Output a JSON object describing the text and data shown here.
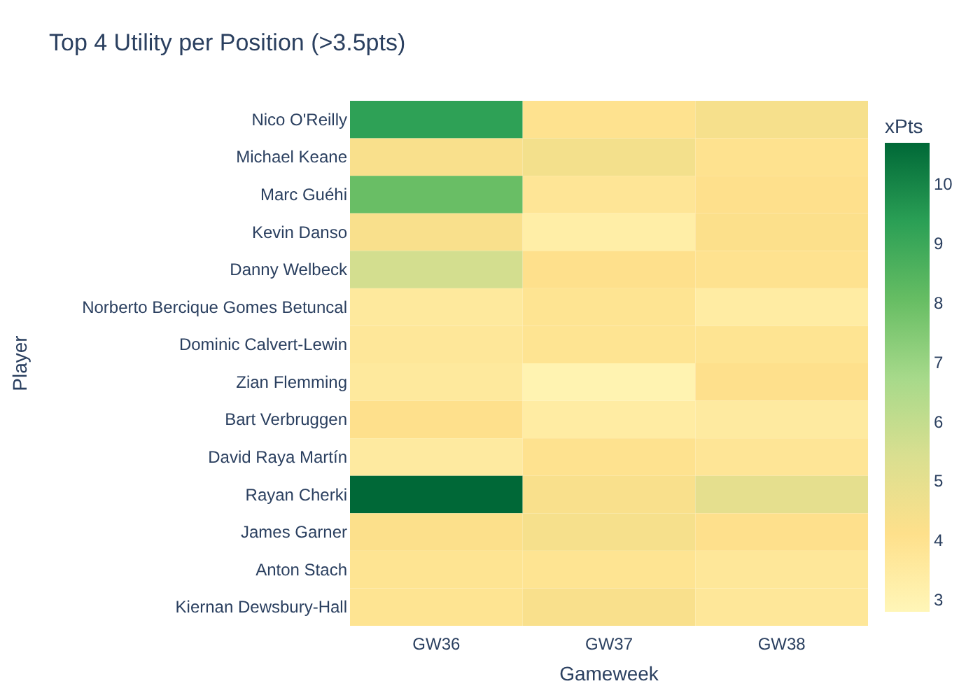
{
  "chart_data": {
    "type": "heatmap",
    "title": "Top 4 Utility per Position (>3.5pts)",
    "xlabel": "Gameweek",
    "ylabel": "Player",
    "clabel": "xPts",
    "categories": [
      "GW36",
      "GW37",
      "GW38"
    ],
    "y_categories": [
      "Nico O'Reilly",
      "Michael Keane",
      "Marc Guéhi",
      "Kevin Danso",
      "Danny Welbeck",
      "Norberto Bercique Gomes Betuncal",
      "Dominic Calvert-Lewin",
      "Zian Flemming",
      "Bart Verbruggen",
      "David Raya Martín",
      "Rayan Cherki",
      "James Garner",
      "Anton Stach",
      "Kiernan Dewsbury-Hall"
    ],
    "cells": [
      [
        9.3,
        4.0,
        4.4
      ],
      [
        4.3,
        4.5,
        4.0
      ],
      [
        8.0,
        3.8,
        4.1
      ],
      [
        4.3,
        3.3,
        4.2
      ],
      [
        5.6,
        4.1,
        4.0
      ],
      [
        3.6,
        3.9,
        3.4
      ],
      [
        3.7,
        3.9,
        3.9
      ],
      [
        3.6,
        3.0,
        4.1
      ],
      [
        4.1,
        3.4,
        3.5
      ],
      [
        3.5,
        4.0,
        3.8
      ],
      [
        10.7,
        4.3,
        5.0
      ],
      [
        4.2,
        4.4,
        4.1
      ],
      [
        3.9,
        3.9,
        3.7
      ],
      [
        3.9,
        4.3,
        3.7
      ]
    ],
    "clim": [
      2.8,
      10.7
    ],
    "cticks": [
      3,
      4,
      5,
      6,
      7,
      8,
      9,
      10
    ]
  }
}
